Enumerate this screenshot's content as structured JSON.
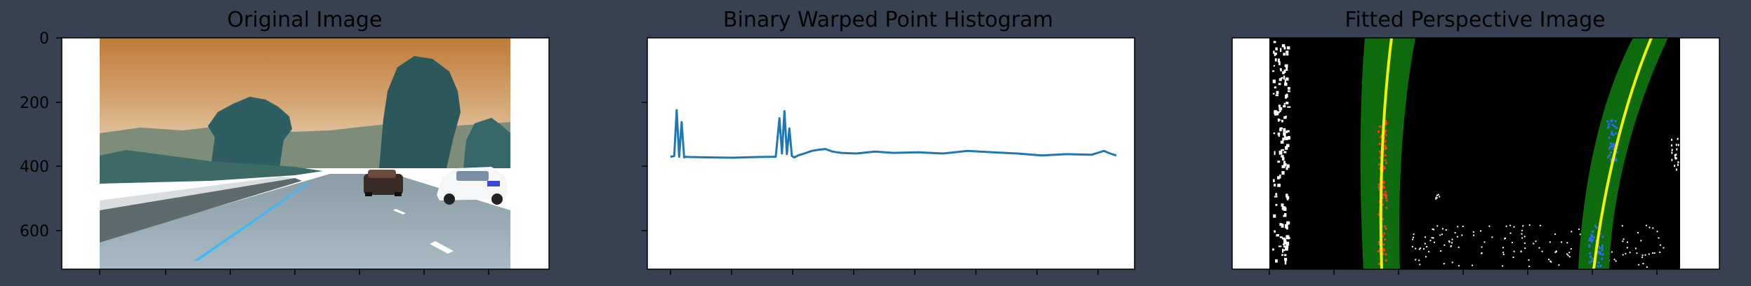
{
  "figure": {
    "background": "#384152",
    "axes_text_color": "#000000",
    "panel_titles": [
      "Original Image",
      "Binary Warped Point Histogram",
      "Fitted Perspective Image"
    ]
  },
  "chart_data": [
    {
      "type": "image",
      "title": "Original Image",
      "xlabel": "",
      "ylabel": "",
      "y_axis": {
        "range": [
          720,
          0
        ],
        "ticks": [
          0,
          200,
          400,
          600
        ],
        "direction": "downward"
      },
      "x_axis": {
        "tick_labels_visible": false
      },
      "content": "photo of a highway lane with cars and trees under an orange-tinted sky",
      "grid": false
    },
    {
      "type": "line",
      "title": "Binary Warped Point Histogram",
      "xlabel": "",
      "ylabel": "",
      "x_axis": {
        "tick_labels_visible": false
      },
      "y_axis": {
        "range": [
          720,
          0
        ],
        "tick_labels_visible": false
      },
      "series_color": "#1f77b4",
      "series": [
        {
          "x": [
            0,
            6,
            10,
            14,
            18,
            22,
            26,
            30,
            60,
            100,
            140,
            170,
            176,
            180,
            184,
            188,
            192,
            196,
            200,
            206,
            216,
            228,
            240,
            250,
            262,
            276,
            300,
            330,
            360,
            400,
            440,
            480,
            520,
            560,
            600,
            640,
            680,
            700,
            710,
            720
          ],
          "y": [
            370,
            368,
            225,
            370,
            262,
            372,
            370,
            371,
            372,
            373,
            371,
            370,
            250,
            360,
            228,
            362,
            282,
            368,
            372,
            366,
            360,
            352,
            348,
            346,
            354,
            358,
            360,
            354,
            358,
            356,
            360,
            352,
            356,
            360,
            366,
            362,
            364,
            352,
            360,
            366
          ]
        }
      ],
      "grid": false
    },
    {
      "type": "image",
      "title": "Fitted Perspective Image",
      "xlabel": "",
      "ylabel": "",
      "y_axis": {
        "tick_labels_visible": false
      },
      "x_axis": {
        "tick_labels_visible": false
      },
      "content": "binary warped lane image with green lane search windows, yellow fitted polynomial lines, red left lane pixels and blue right lane pixels",
      "colors": {
        "window": "#0d6b0d",
        "fit_line": "#f2f200",
        "left_pixels": "#ff3b1f",
        "right_pixels": "#2b6dff"
      },
      "grid": false
    }
  ]
}
